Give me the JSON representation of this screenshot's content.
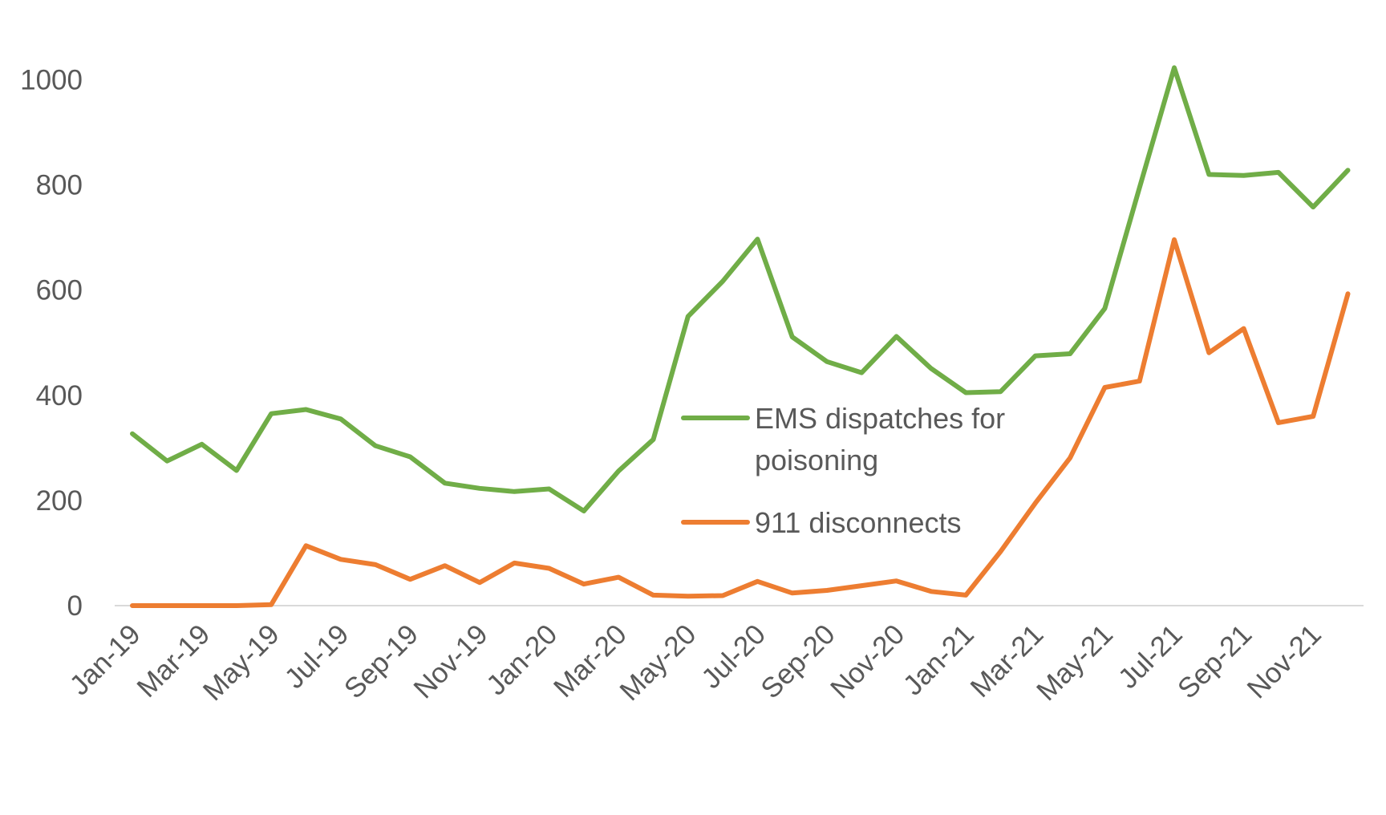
{
  "chart_data": {
    "type": "line",
    "title": "",
    "xlabel": "",
    "ylabel": "",
    "ylim": [
      0,
      1000
    ],
    "yticks": [
      "0",
      "200",
      "400",
      "600",
      "800",
      "1000"
    ],
    "grid": false,
    "legend_position": "center-right",
    "categories": [
      "Jan-19",
      "Feb-19",
      "Mar-19",
      "Apr-19",
      "May-19",
      "Jun-19",
      "Jul-19",
      "Aug-19",
      "Sep-19",
      "Oct-19",
      "Nov-19",
      "Dec-19",
      "Jan-20",
      "Feb-20",
      "Mar-20",
      "Apr-20",
      "May-20",
      "Jun-20",
      "Jul-20",
      "Aug-20",
      "Sep-20",
      "Oct-20",
      "Nov-20",
      "Dec-20",
      "Jan-21",
      "Feb-21",
      "Mar-21",
      "Apr-21",
      "May-21",
      "Jun-21",
      "Jul-21",
      "Aug-21",
      "Sep-21",
      "Oct-21",
      "Nov-21",
      "Dec-21"
    ],
    "xtick_labels": [
      "Jan-19",
      "Mar-19",
      "May-19",
      "Jul-19",
      "Sep-19",
      "Nov-19",
      "Jan-20",
      "Mar-20",
      "May-20",
      "Jul-20",
      "Sep-20",
      "Nov-20",
      "Jan-21",
      "Mar-21",
      "May-21",
      "Jul-21",
      "Sep-21",
      "Nov-21"
    ],
    "series": [
      {
        "name": "EMS dispatches for poisoning",
        "color": "#70AD47",
        "values": [
          327,
          275,
          307,
          257,
          365,
          373,
          355,
          304,
          283,
          233,
          223,
          217,
          222,
          180,
          256,
          316,
          550,
          617,
          697,
          511,
          464,
          443,
          512,
          451,
          405,
          407,
          475,
          479,
          565,
          795,
          1023,
          820,
          818,
          824,
          758,
          828
        ]
      },
      {
        "name": "911 disconnects",
        "color": "#ED7D31",
        "values": [
          0,
          0,
          0,
          0,
          2,
          114,
          88,
          78,
          50,
          76,
          44,
          81,
          71,
          41,
          54,
          20,
          18,
          19,
          46,
          24,
          29,
          38,
          47,
          27,
          20,
          103,
          195,
          281,
          415,
          427,
          696,
          481,
          527,
          348,
          360,
          593
        ]
      }
    ]
  },
  "legend": {
    "ems_line1": "EMS dispatches for",
    "ems_line2": "poisoning",
    "disconnects": "911 disconnects"
  }
}
